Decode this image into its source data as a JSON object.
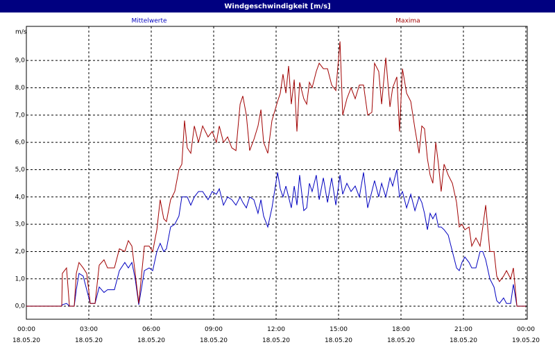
{
  "chart_data": {
    "type": "line",
    "title": "Windgeschwindigkeit [m/s]",
    "y_label": "m/s",
    "x": [
      0,
      1.7,
      1.73,
      1.93,
      2.07,
      2.3,
      2.4,
      2.53,
      2.73,
      2.9,
      3.07,
      3.3,
      3.5,
      3.73,
      3.9,
      4.23,
      4.47,
      4.73,
      4.9,
      5.07,
      5.23,
      5.4,
      5.67,
      5.9,
      6.07,
      6.27,
      6.43,
      6.6,
      6.73,
      6.93,
      7.13,
      7.33,
      7.47,
      7.6,
      7.73,
      7.9,
      8.07,
      8.27,
      8.47,
      8.73,
      8.93,
      9.13,
      9.27,
      9.47,
      9.67,
      9.87,
      10.07,
      10.27,
      10.4,
      10.57,
      10.73,
      10.93,
      11.13,
      11.27,
      11.4,
      11.6,
      11.8,
      12.07,
      12.2,
      12.33,
      12.47,
      12.6,
      12.73,
      12.87,
      13,
      13.13,
      13.33,
      13.47,
      13.6,
      13.73,
      13.93,
      14.07,
      14.27,
      14.47,
      14.67,
      14.87,
      15.07,
      15.2,
      15.4,
      15.6,
      15.8,
      16,
      16.2,
      16.4,
      16.6,
      16.73,
      16.93,
      17.07,
      17.27,
      17.47,
      17.6,
      17.8,
      17.93,
      18.07,
      18.27,
      18.47,
      18.67,
      18.87,
      19,
      19.13,
      19.27,
      19.4,
      19.53,
      19.67,
      19.8,
      19.93,
      20.07,
      20.27,
      20.47,
      20.67,
      20.8,
      20.93,
      21.07,
      21.27,
      21.4,
      21.6,
      21.8,
      21.93,
      22.07,
      22.27,
      22.47,
      22.6,
      22.73,
      22.93,
      23.07,
      23.27,
      23.4,
      23.57,
      24
    ],
    "series": [
      {
        "name": "Mittelwerte",
        "color": "#0000c0",
        "values": [
          0,
          0,
          0.05,
          0.1,
          0,
          0,
          0.6,
          1.2,
          1.1,
          0.6,
          0.1,
          0.1,
          0.7,
          0.5,
          0.6,
          0.6,
          1.3,
          1.6,
          1.4,
          1.6,
          1.0,
          0.05,
          1.3,
          1.4,
          1.3,
          2.0,
          2.3,
          2.0,
          2.1,
          2.9,
          3.0,
          3.3,
          4.0,
          4.0,
          4.0,
          3.7,
          4.0,
          4.2,
          4.2,
          3.9,
          4.2,
          4.1,
          4.3,
          3.7,
          4.0,
          3.9,
          3.7,
          4.0,
          3.8,
          3.6,
          4.0,
          3.9,
          3.4,
          3.9,
          3.3,
          2.9,
          3.6,
          4.9,
          4.3,
          4.0,
          4.4,
          4.0,
          3.6,
          4.4,
          3.7,
          4.8,
          3.5,
          3.6,
          4.5,
          4.2,
          4.8,
          3.9,
          4.7,
          3.8,
          4.7,
          3.7,
          4.8,
          4.1,
          4.5,
          4.2,
          4.4,
          4.0,
          4.9,
          3.6,
          4.2,
          4.6,
          4.0,
          4.5,
          4.0,
          4.7,
          4.4,
          5.0,
          4.0,
          4.2,
          3.6,
          4.1,
          3.5,
          4.0,
          3.8,
          3.4,
          2.8,
          3.4,
          3.2,
          3.4,
          2.9,
          2.9,
          2.8,
          2.6,
          2.0,
          1.4,
          1.3,
          1.6,
          1.8,
          1.6,
          1.4,
          1.4,
          2.0,
          2.0,
          1.7,
          1.0,
          0.7,
          0.2,
          0.1,
          0.3,
          0.1,
          0.1,
          0.8,
          0,
          0
        ]
      },
      {
        "name": "Maxima",
        "color": "#a00000",
        "values": [
          0,
          0,
          1.2,
          1.4,
          0,
          0,
          1.2,
          1.6,
          1.4,
          1.2,
          0.1,
          0.1,
          1.5,
          1.7,
          1.4,
          1.4,
          2.1,
          2.0,
          2.4,
          2.2,
          1.2,
          0.1,
          2.2,
          2.2,
          2.0,
          2.8,
          3.9,
          3.2,
          3.1,
          3.9,
          4.2,
          5.0,
          5.2,
          6.8,
          5.8,
          5.6,
          6.6,
          6.0,
          6.6,
          6.2,
          6.4,
          6.0,
          6.6,
          6.0,
          6.2,
          5.8,
          5.7,
          7.4,
          7.7,
          7.0,
          5.7,
          6.1,
          6.6,
          7.2,
          6.0,
          5.6,
          6.8,
          7.5,
          7.8,
          8.5,
          7.8,
          8.8,
          7.4,
          8.3,
          6.4,
          8.2,
          7.6,
          7.4,
          8.2,
          8.0,
          8.6,
          8.9,
          8.7,
          8.7,
          8.1,
          7.9,
          9.7,
          7.0,
          7.6,
          8.0,
          7.6,
          8.1,
          8.1,
          7.0,
          7.1,
          8.9,
          8.6,
          7.4,
          9.1,
          7.3,
          8.0,
          8.4,
          6.4,
          8.7,
          7.8,
          7.5,
          6.5,
          5.6,
          6.6,
          6.5,
          5.4,
          4.8,
          4.5,
          6.0,
          5.2,
          4.2,
          5.2,
          4.8,
          4.5,
          3.8,
          2.9,
          3.0,
          2.8,
          2.9,
          2.2,
          2.5,
          2.2,
          2.9,
          3.7,
          2.0,
          2.0,
          1.1,
          0.9,
          1.1,
          1.3,
          1.0,
          1.4,
          0,
          0
        ]
      }
    ],
    "xlim": [
      0,
      24
    ],
    "xticks": [
      {
        "value": 0,
        "label": "00:00 18.05.20"
      },
      {
        "value": 3,
        "label": "03:00 18.05.20"
      },
      {
        "value": 6,
        "label": "06:00 18.05.20"
      },
      {
        "value": 9,
        "label": "09:00 18.05.20"
      },
      {
        "value": 12,
        "label": "12:00 18.05.20"
      },
      {
        "value": 15,
        "label": "15:00 18.05.20"
      },
      {
        "value": 18,
        "label": "18:00 18.05.20"
      },
      {
        "value": 21,
        "label": "21:00 18.05.20"
      },
      {
        "value": 24,
        "label": "00:00 19.05.20"
      }
    ],
    "ylim": [
      -0.48,
      10.25
    ],
    "yticks": [
      {
        "value": 0,
        "label": "0,0"
      },
      {
        "value": 1,
        "label": "1,0"
      },
      {
        "value": 2,
        "label": "2,0"
      },
      {
        "value": 3,
        "label": "3,0"
      },
      {
        "value": 4,
        "label": "4,0"
      },
      {
        "value": 5,
        "label": "5,0"
      },
      {
        "value": 6,
        "label": "6,0"
      },
      {
        "value": 7,
        "label": "7,0"
      },
      {
        "value": 8,
        "label": "8,0"
      },
      {
        "value": 9,
        "label": "9,0"
      }
    ],
    "grid": true
  }
}
